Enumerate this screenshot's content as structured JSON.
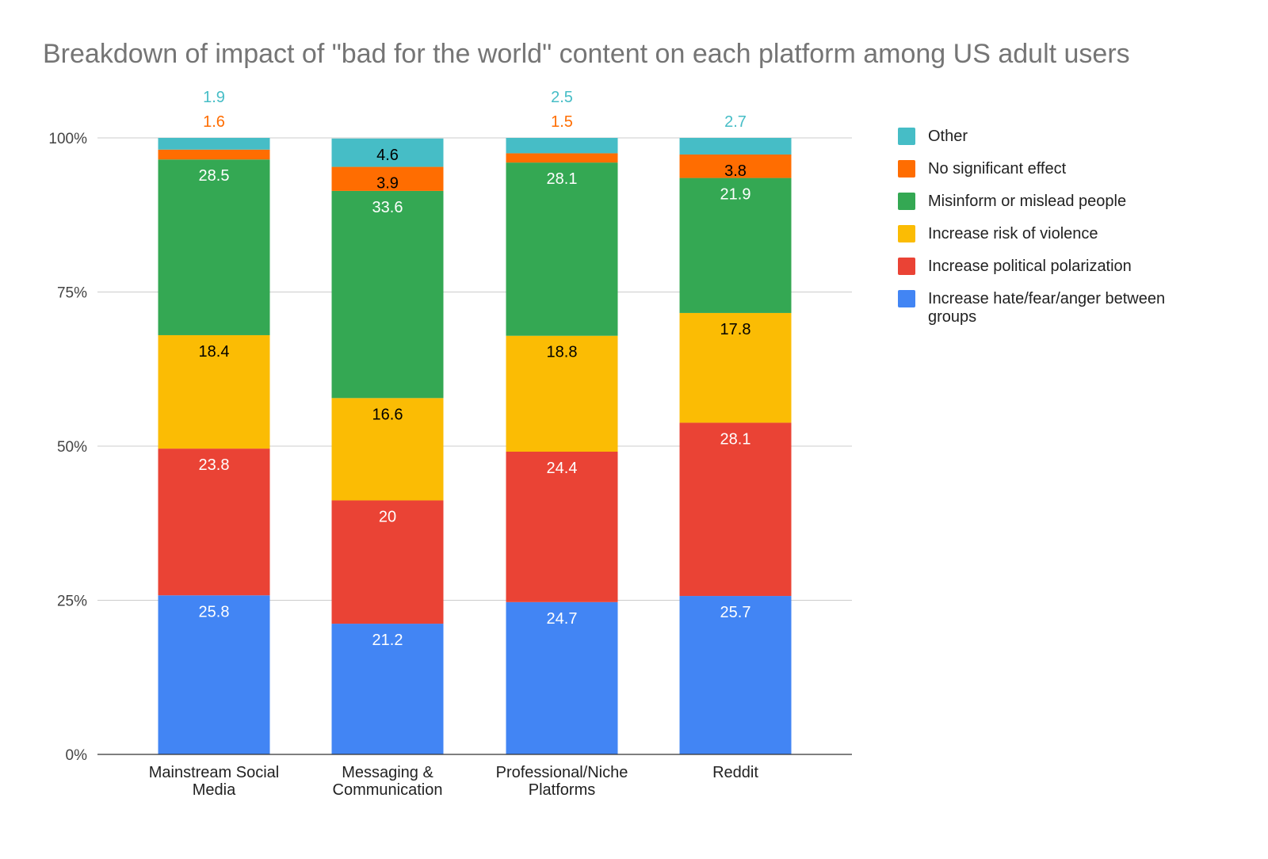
{
  "chart_data": {
    "type": "bar",
    "stacked": "percent",
    "title": "Breakdown of impact of \"bad for the world\" content on each platform among US adult users",
    "categories": [
      [
        "Mainstream Social",
        "Media"
      ],
      [
        "Messaging &",
        "Communication"
      ],
      [
        "Professional/Niche",
        "Platforms"
      ],
      [
        "Reddit"
      ]
    ],
    "ylim": [
      0,
      100
    ],
    "yticks": [
      "0%",
      "25%",
      "50%",
      "75%",
      "100%"
    ],
    "grid": true,
    "legend_position": "right",
    "series": [
      {
        "name": "Increase hate/fear/anger between groups",
        "color": "#4285F4",
        "label_color": "#ffffff",
        "values": [
          25.8,
          21.2,
          24.7,
          25.7
        ]
      },
      {
        "name": "Increase political polarization",
        "color": "#EA4335",
        "label_color": "#ffffff",
        "values": [
          23.8,
          20,
          24.4,
          28.1
        ]
      },
      {
        "name": "Increase risk of violence",
        "color": "#FBBC04",
        "label_color": "#000000",
        "values": [
          18.4,
          16.6,
          18.8,
          17.8
        ]
      },
      {
        "name": "Misinform or mislead people",
        "color": "#34A853",
        "label_color": "#ffffff",
        "values": [
          28.5,
          33.6,
          28.1,
          21.9
        ]
      },
      {
        "name": "No significant effect",
        "color": "#FF6D01",
        "label_color": "#000000",
        "values": [
          1.6,
          3.9,
          1.5,
          3.8
        ]
      },
      {
        "name": "Other",
        "color": "#46BDC6",
        "label_color": "#000000",
        "values": [
          1.9,
          4.6,
          2.5,
          2.7
        ]
      }
    ]
  }
}
